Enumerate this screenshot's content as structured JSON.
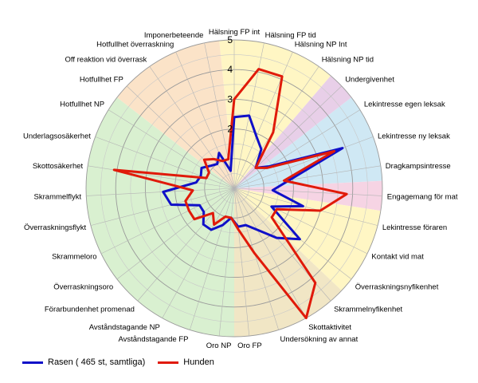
{
  "chart_data": {
    "type": "radar",
    "categories": [
      "Hälsning FP int",
      "Hälsning FP tid",
      "Hälsning NP Int",
      "Hälsning NP tid",
      "Undergivenhet",
      "Lekintresse egen leksak",
      "Lekintresse ny leksak",
      "Dragkampsintresse",
      "Engagemang för mat",
      "Lekintresse föraren",
      "Kontakt vid mat",
      "Överraskningsnyfikenhet",
      "Skrammelnyfikenhet",
      "Skottaktivitet",
      "Undersökning av annat",
      "Oro FP",
      "Oro NP",
      "Avståndstagande FP",
      "Avståndstagande NP",
      "Förarbundenhet promenad",
      "Överraskningsoro",
      "Skrammeloro",
      "Överraskningsflykt",
      "Skrammelflykt",
      "Skottosäkerhet",
      "Underlagsosäkerhet",
      "Hotfullhet NP",
      "Hotfullhet FP",
      "Off reaktion vid överrask",
      "Hotfullhet överraskning",
      "Imponerbeteende"
    ],
    "rlim": [
      0,
      5
    ],
    "ticks": [
      1,
      2,
      3,
      4,
      5
    ],
    "series": [
      {
        "name": "Rasen ( 465 st, samtliga)",
        "color": "#1010c8",
        "values": [
          2.4,
          2.5,
          1.9,
          1.6,
          1.0,
          1.4,
          3.9,
          1.9,
          1.3,
          2.4,
          1.4,
          2.8,
          2.2,
          1.6,
          1.3,
          1.3,
          1.0,
          1.3,
          1.6,
          1.6,
          1.3,
          1.3,
          2.2,
          2.4,
          1.3,
          1.2,
          1.3,
          1.1,
          1.0,
          1.3,
          0.6
        ]
      },
      {
        "name": "Hunden",
        "color": "#e01a0a",
        "values": [
          3.0,
          4.1,
          4.1,
          2.3,
          1.0,
          1.3,
          3.6,
          1.7,
          3.8,
          3.0,
          1.6,
          1.6,
          4.2,
          5.0,
          2.3,
          1.4,
          1.0,
          1.0,
          1.4,
          1.1,
          1.7,
          1.7,
          1.7,
          1.4,
          4.1,
          1.0,
          1.0,
          1.4,
          1.2,
          1.0,
          1.0
        ]
      }
    ],
    "sectors": [
      {
        "start": 0,
        "end": 3,
        "color": "#fff6c4"
      },
      {
        "start": 4,
        "end": 4,
        "color": "#e8cfe8"
      },
      {
        "start": 5,
        "end": 7,
        "color": "#cfe8f4"
      },
      {
        "start": 8,
        "end": 8,
        "color": "#f6d4e4"
      },
      {
        "start": 9,
        "end": 11,
        "color": "#fff6c4"
      },
      {
        "start": 12,
        "end": 15,
        "color": "#f1e6c5"
      },
      {
        "start": 16,
        "end": 26,
        "color": "#d9f0d0"
      },
      {
        "start": 27,
        "end": 30,
        "color": "#fbe3c8"
      }
    ],
    "legend_position": "bottom-left",
    "grid": true
  }
}
